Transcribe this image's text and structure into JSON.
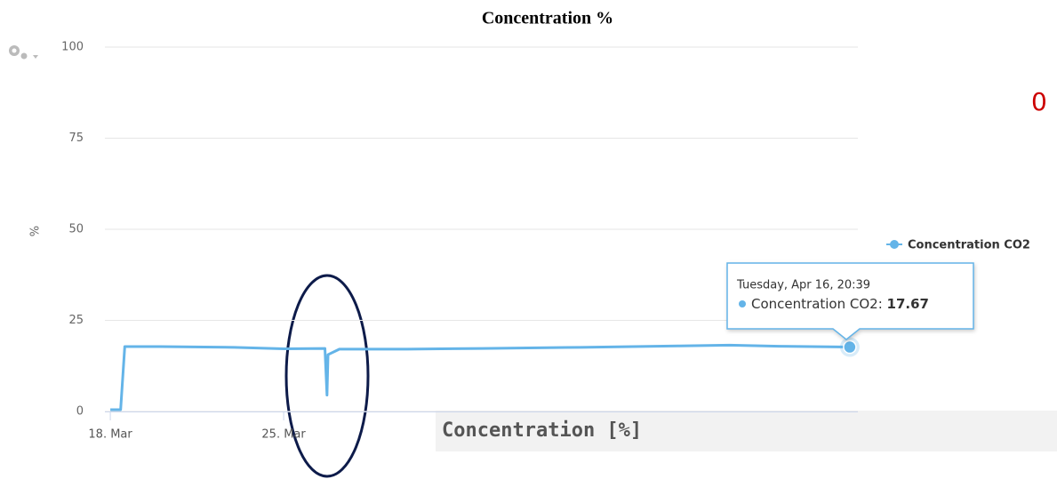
{
  "chart_data": {
    "type": "line",
    "title": "Concentration %",
    "y_label": "%",
    "x": [
      "03-18 00:00",
      "03-18 10:00",
      "03-18 14:00",
      "03-20 00:00",
      "03-23 00:00",
      "03-25 00:00",
      "03-26 16:00",
      "03-26 18:00",
      "03-26 19:00",
      "03-27 06:00",
      "03-30 00:00",
      "04-02 00:00",
      "04-06 00:00",
      "04-10 00:00",
      "04-12 00:00",
      "04-14 00:00",
      "04-16 20:39"
    ],
    "series": [
      {
        "name": "Concentration CO2",
        "color": "#64b4e8",
        "values": [
          0.5,
          0.5,
          17.8,
          17.8,
          17.6,
          17.2,
          17.3,
          4.5,
          15.6,
          17.1,
          17.1,
          17.3,
          17.6,
          18.0,
          18.2,
          17.9,
          17.67
        ]
      }
    ],
    "xlim": [
      "03-17 18:45",
      "04-17 04:30"
    ],
    "xticks": [
      {
        "value": "03-18 00:00",
        "label": "18. Mar"
      },
      {
        "value": "03-25 00:00",
        "label": "25. Mar"
      }
    ],
    "ylim": [
      0,
      100
    ],
    "yticks": [
      0,
      25,
      50,
      75,
      100
    ],
    "grid": true,
    "tooltip": "Tuesday, Apr 16, 20:39"
  },
  "overlay": "Concentration [%]",
  "corner_text": "0"
}
